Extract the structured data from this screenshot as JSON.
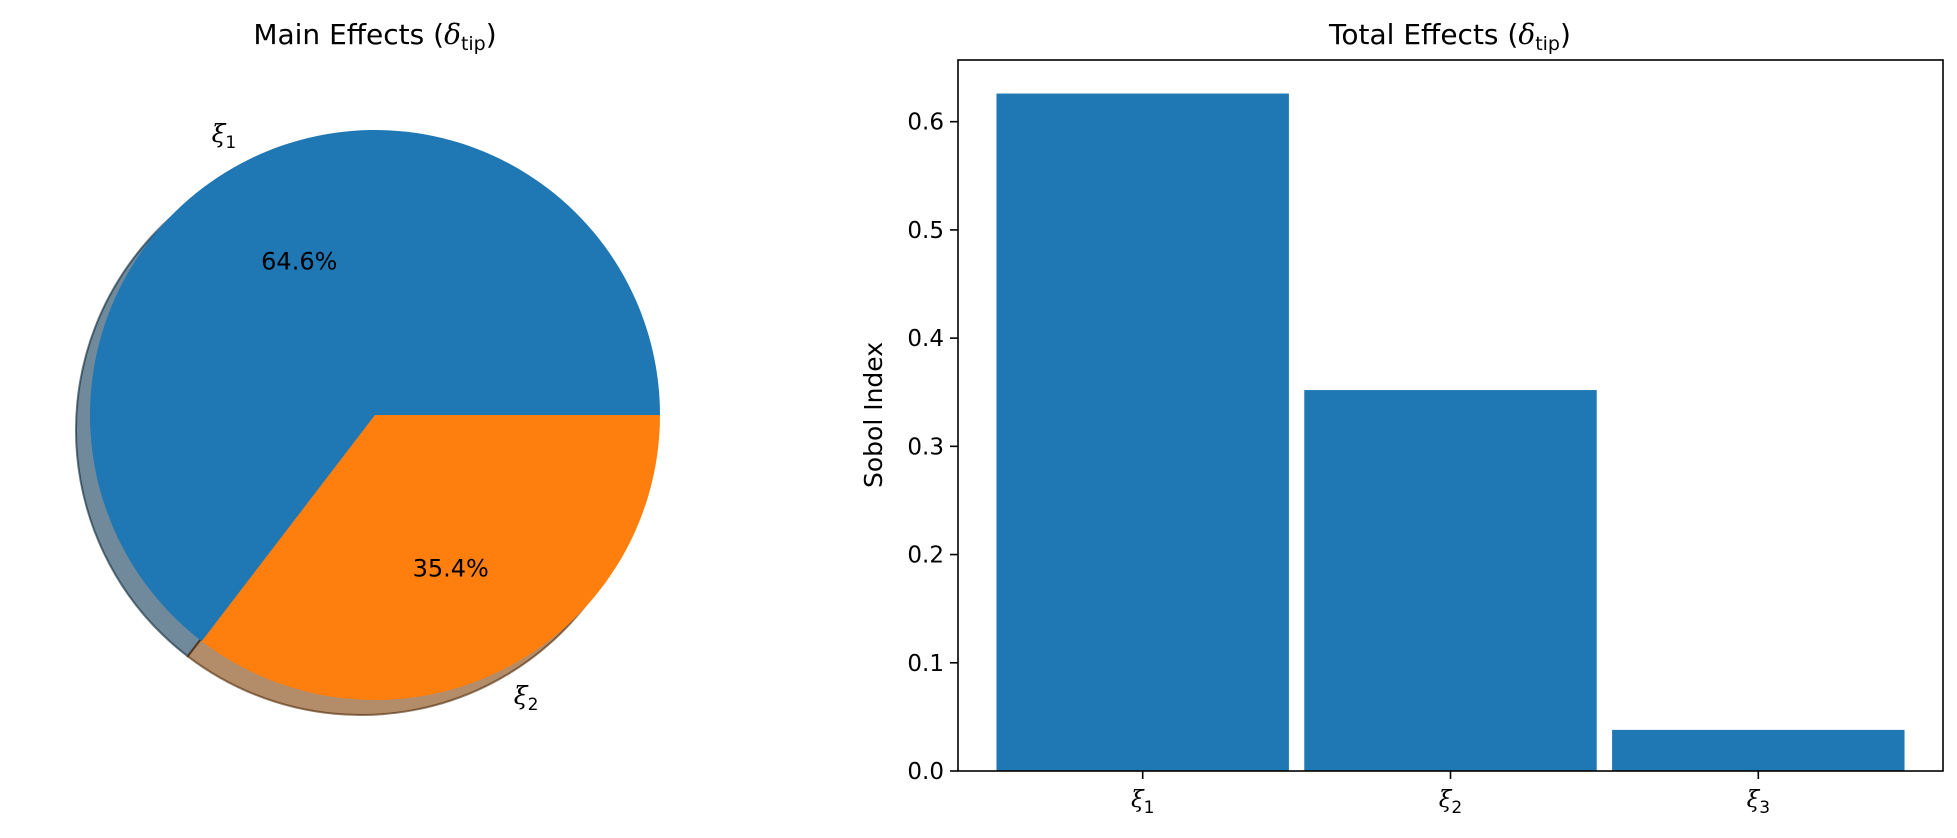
{
  "chart_data": [
    {
      "type": "pie",
      "title": "Main Effects (δtip)",
      "title_parts": {
        "prefix": "Main Effects (",
        "symbol": "δ",
        "subscript": "tip",
        "suffix": ")"
      },
      "slices": [
        {
          "label": "ξ1",
          "symbol": "ξ",
          "subscript": "1",
          "value": 64.6,
          "pct_label": "64.6%",
          "color": "#1f77b4"
        },
        {
          "label": "ξ2",
          "symbol": "ξ",
          "subscript": "2",
          "value": 35.4,
          "pct_label": "35.4%",
          "color": "#ff7f0e"
        }
      ],
      "shadow": true,
      "start_angle_deg": 0,
      "direction": "counterclockwise"
    },
    {
      "type": "bar",
      "title": "Total Effects (δtip)",
      "title_parts": {
        "prefix": "Total Effects (",
        "symbol": "δ",
        "subscript": "tip",
        "suffix": ")"
      },
      "categories": [
        "ξ1",
        "ξ2",
        "ξ3"
      ],
      "category_parts": [
        {
          "symbol": "ξ",
          "subscript": "1"
        },
        {
          "symbol": "ξ",
          "subscript": "2"
        },
        {
          "symbol": "ξ",
          "subscript": "3"
        }
      ],
      "values": [
        0.626,
        0.352,
        0.038
      ],
      "xlabel": "",
      "ylabel": "Sobol Index",
      "ylim": [
        0.0,
        0.657
      ],
      "yticks": [
        0.0,
        0.1,
        0.2,
        0.3,
        0.4,
        0.5,
        0.6
      ],
      "ytick_labels": [
        "0.0",
        "0.1",
        "0.2",
        "0.3",
        "0.4",
        "0.5",
        "0.6"
      ],
      "bar_color": "#1f77b4",
      "grid": false
    }
  ]
}
